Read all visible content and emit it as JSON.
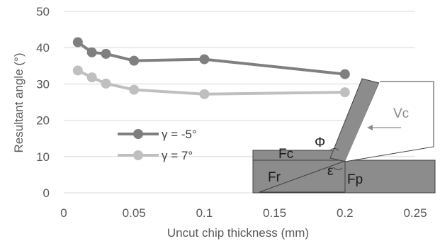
{
  "chart_data": {
    "type": "line",
    "xlabel": "Uncut chip thickness (mm)",
    "ylabel": "Resultant angle (°)",
    "xlim": [
      0,
      0.25
    ],
    "ylim": [
      0,
      50
    ],
    "x_ticks": [
      "0",
      "0.05",
      "0.1",
      "0.15",
      "0.2",
      "0.25"
    ],
    "y_ticks": [
      "0",
      "10",
      "20",
      "30",
      "40",
      "50"
    ],
    "grid": "horizontal",
    "legend_position": "center-left",
    "series": [
      {
        "name": "γ = -5°",
        "color": "#7f7f7f",
        "points": [
          {
            "x": 0.01,
            "y": 41.5
          },
          {
            "x": 0.02,
            "y": 38.7
          },
          {
            "x": 0.03,
            "y": 38.3
          },
          {
            "x": 0.05,
            "y": 36.4
          },
          {
            "x": 0.1,
            "y": 36.8
          },
          {
            "x": 0.2,
            "y": 32.7
          }
        ]
      },
      {
        "name": "γ = 7°",
        "color": "#bfbfbf",
        "points": [
          {
            "x": 0.01,
            "y": 33.7
          },
          {
            "x": 0.02,
            "y": 31.8
          },
          {
            "x": 0.03,
            "y": 30.1
          },
          {
            "x": 0.05,
            "y": 28.4
          },
          {
            "x": 0.1,
            "y": 27.2
          },
          {
            "x": 0.2,
            "y": 27.7
          }
        ]
      }
    ],
    "annotations": {
      "fc": "Fc",
      "fr": "Fr",
      "fp": "Fp",
      "phi": "Φ",
      "epsilon": "ε",
      "vc": "Vc"
    }
  }
}
